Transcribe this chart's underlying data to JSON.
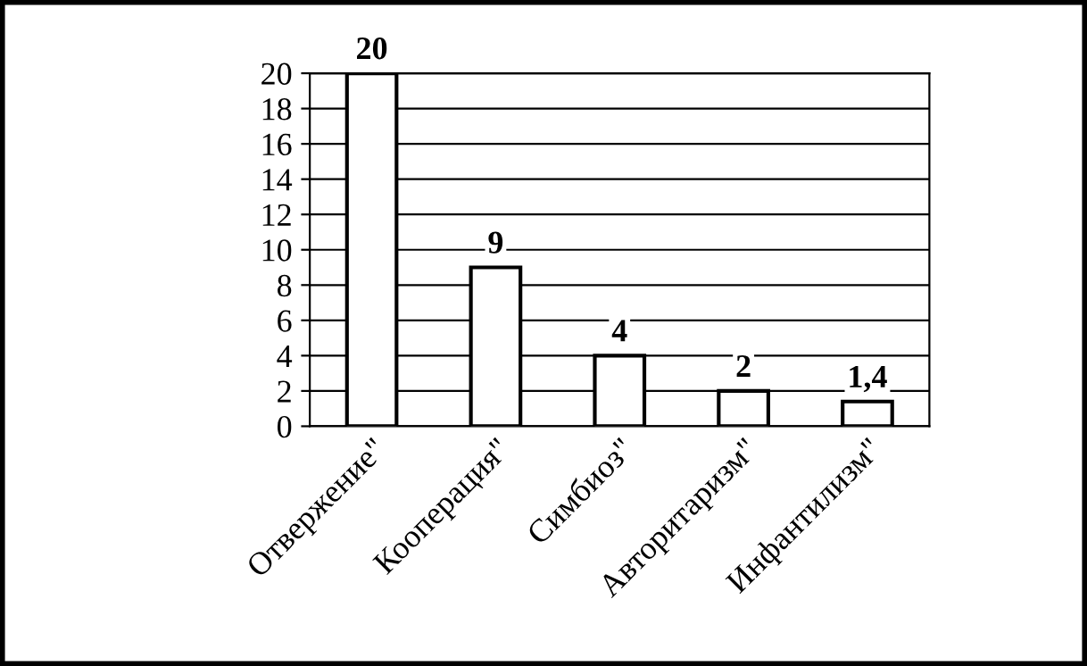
{
  "chart_data": {
    "type": "bar",
    "categories": [
      "Отвержение\"",
      "Кооперация\"",
      "Симбиоз\"",
      "Авторитаризм\"",
      "Инфантилизм\""
    ],
    "values": [
      20,
      9,
      4,
      2,
      1.4
    ],
    "value_labels": [
      "20",
      "9",
      "4",
      "2",
      "1,4"
    ],
    "color": "#ffffff",
    "ylim": [
      0,
      20
    ],
    "yticks": [
      0,
      2,
      4,
      6,
      8,
      10,
      12,
      14,
      16,
      18,
      20
    ],
    "grid": "y"
  }
}
